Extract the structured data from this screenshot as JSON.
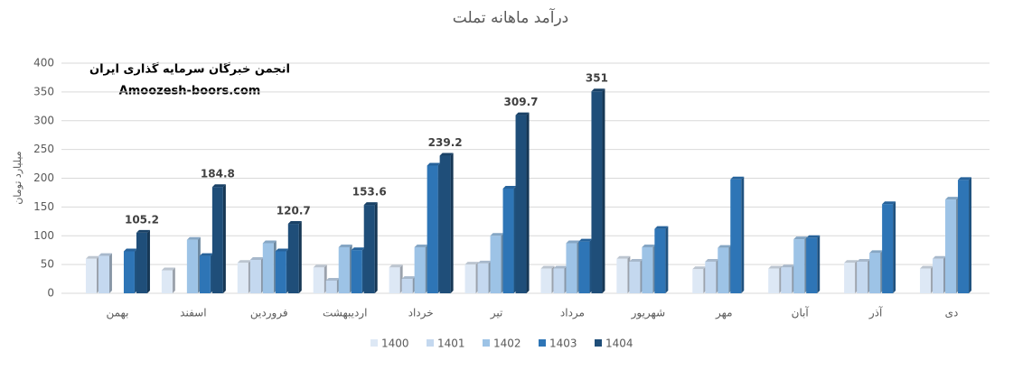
{
  "chart_data": {
    "type": "bar",
    "title": "درآمد ماهانه تملت",
    "y_label": "میلیارد تومان",
    "annotations": [
      "انجمن خبرگان سرمایه گذاری ایران",
      "Amoozesh-boors.com"
    ],
    "categories": [
      "بهمن",
      "اسفند",
      "فروردین",
      "اردیبهشت",
      "خرداد",
      "تیر",
      "مرداد",
      "شهریور",
      "مهر",
      "آبان",
      "آذر",
      "دی"
    ],
    "series": [
      {
        "name": "1400",
        "color": "#dde8f5",
        "values": [
          60,
          40,
          53,
          45,
          45,
          50,
          43,
          60,
          42,
          43,
          53,
          43
        ]
      },
      {
        "name": "1401",
        "color": "#c4d8ef",
        "values": [
          65,
          null,
          58,
          22,
          25,
          52,
          43,
          55,
          55,
          45,
          55,
          60
        ]
      },
      {
        "name": "1402",
        "color": "#9dc3e6",
        "values": [
          null,
          93,
          87,
          80,
          80,
          100,
          87,
          80,
          79,
          94,
          70,
          163
        ]
      },
      {
        "name": "1403",
        "color": "#2e75b6",
        "values": [
          73,
          65,
          73,
          75,
          222,
          182,
          90,
          112,
          198,
          96,
          155,
          197
        ]
      },
      {
        "name": "1404",
        "color": "#1f4e79",
        "values": [
          105.2,
          184.8,
          120.7,
          153.6,
          239.2,
          309.7,
          351,
          null,
          null,
          null,
          null,
          null
        ],
        "data_labels": true
      }
    ],
    "ylim": [
      0,
      400
    ],
    "yticks": [
      0,
      50,
      100,
      150,
      200,
      250,
      300,
      350,
      400
    ],
    "grid": true,
    "legend": "bottom"
  }
}
